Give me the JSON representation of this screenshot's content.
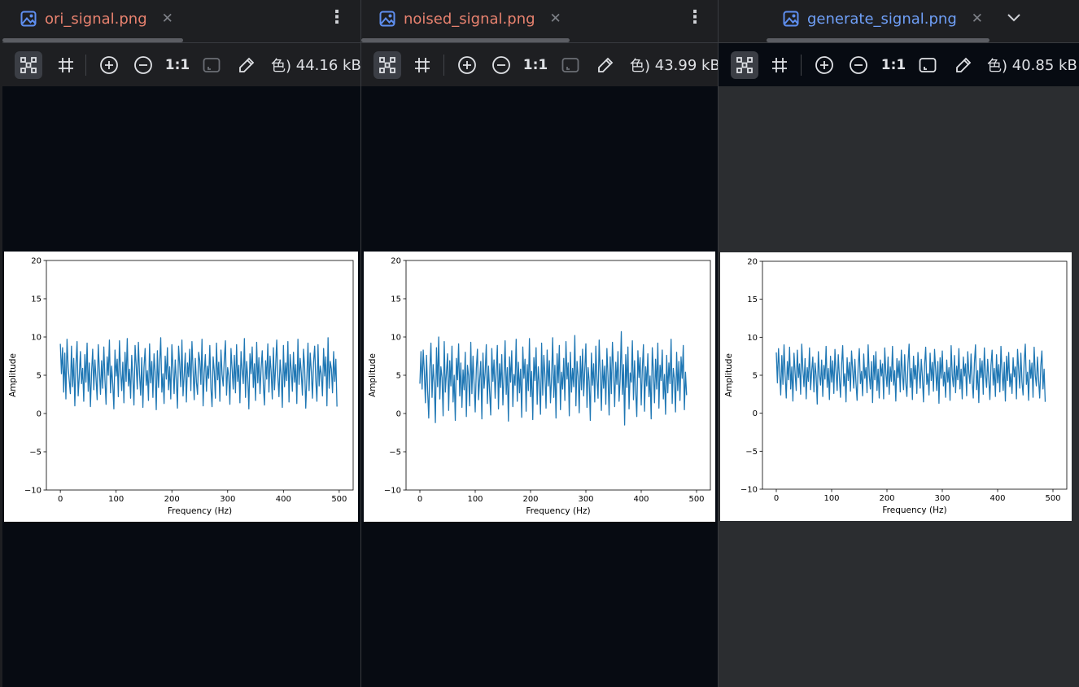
{
  "colors": {
    "tab_text_inactive": "#e8826f",
    "tab_text_active": "#6f9ff7",
    "icon_blue": "#5f8ff0",
    "viewport_dark": "#070b12",
    "viewport_gray": "#2b2d30",
    "series": "#1f77b4"
  },
  "panes": [
    {
      "tab": {
        "label": "ori_signal.png",
        "icon": "image-file-icon",
        "close_icon": "close-icon"
      },
      "menu_icon": "kebab-menu-icon",
      "toolbar": {
        "zoom_label": "1:1",
        "color_glyph": "色)",
        "file_size": "44.16 kB"
      },
      "chart_data": {
        "type": "line",
        "xlabel": "Frequency (Hz)",
        "ylabel": "Amplitude",
        "xlim": [
          -25,
          525
        ],
        "ylim": [
          -10,
          20
        ],
        "xticks": [
          0,
          100,
          200,
          300,
          400,
          500
        ],
        "yticks": [
          -10,
          -5,
          0,
          5,
          10,
          15,
          20
        ],
        "grid": false,
        "series": [
          {
            "x_start": 0,
            "x_step": 2,
            "y": [
              9.1,
              5.2,
              8.6,
              2.8,
              7.9,
              1.9,
              9.7,
              6.1,
              4.3,
              2.6,
              8.8,
              3.5,
              7.2,
              1.0,
              6.4,
              9.4,
              2.3,
              4.8,
              8.1,
              3.9,
              5.9,
              1.6,
              7.7,
              4.1,
              9.2,
              2.9,
              6.6,
              0.9,
              5.3,
              8.4,
              3.1,
              7.0,
              4.6,
              1.8,
              9.0,
              5.7,
              2.5,
              6.9,
              3.3,
              8.7,
              4.4,
              1.2,
              7.4,
              5.0,
              9.6,
              2.7,
              6.2,
              3.8,
              0.6,
              8.3,
              4.9,
              7.1,
              2.2,
              9.5,
              5.5,
              3.0,
              6.7,
              1.4,
              8.0,
              4.2,
              9.8,
              3.6,
              5.8,
              2.0,
              7.6,
              4.7,
              1.1,
              8.9,
              6.3,
              3.2,
              9.3,
              5.1,
              2.4,
              7.3,
              0.8,
              6.0,
              8.5,
              3.7,
              5.6,
              1.7,
              9.1,
              4.0,
              6.8,
              2.1,
              7.8,
              5.4,
              0.5,
              8.2,
              3.4,
              6.5,
              9.9,
              2.8,
              5.2,
              1.3,
              7.5,
              4.5,
              8.6,
              3.1,
              6.1,
              1.9,
              9.0,
              5.9,
              2.6,
              7.0,
              4.3,
              0.7,
              8.8,
              6.4,
              3.5,
              9.6,
              2.3,
              5.0,
              7.9,
              1.5,
              6.6,
              4.8,
              8.4,
              3.0,
              9.4,
              5.7,
              1.8,
              7.2,
              4.1,
              2.5,
              8.0,
              6.9,
              3.8,
              9.7,
              1.0,
              5.3,
              7.7,
              2.9,
              6.2,
              4.6,
              8.9,
              3.3,
              0.9,
              7.4,
              5.5,
              2.0,
              9.2,
              4.4,
              6.7,
              1.6,
              8.3,
              5.1,
              3.6,
              7.1,
              9.5,
              2.4,
              6.0,
              4.9,
              1.2,
              8.5,
              5.8,
              3.2,
              7.6,
              2.7,
              9.0,
              4.2,
              6.3,
              1.4,
              8.1,
              5.6,
              3.9,
              9.8,
              2.1,
              6.8,
              4.7,
              0.6,
              7.8,
              5.2,
              8.7,
              3.4,
              6.5,
              1.7,
              9.3,
              4.0,
              7.3,
              2.6,
              5.9,
              8.2,
              3.7,
              1.1,
              6.9,
              4.5,
              9.1,
              2.8,
              7.5,
              5.4,
              1.9,
              8.6,
              3.1,
              6.1,
              9.6,
              4.8,
              2.2,
              7.0,
              5.0,
              0.8,
              8.9,
              3.5,
              6.6,
              4.3,
              9.4,
              1.5,
              7.7,
              5.7,
              2.9,
              8.0,
              4.1,
              6.4,
              1.3,
              9.7,
              3.8,
              7.2,
              5.3,
              2.4,
              8.4,
              6.0,
              0.7,
              4.6,
              9.2,
              3.0,
              7.9,
              5.5,
              2.0,
              6.7,
              8.8,
              4.4,
              1.6,
              9.0,
              3.6,
              6.2,
              5.1,
              2.3,
              8.5,
              4.9,
              7.4,
              1.0,
              9.9,
              3.3,
              6.8,
              5.8,
              2.7,
              8.1,
              4.2,
              7.1,
              0.9
            ]
          }
        ]
      }
    },
    {
      "tab": {
        "label": "noised_signal.png",
        "icon": "image-file-icon",
        "close_icon": "close-icon"
      },
      "menu_icon": "kebab-menu-icon",
      "toolbar": {
        "zoom_label": "1:1",
        "color_glyph": "色)",
        "file_size": "43.99 kB"
      },
      "chart_data": {
        "type": "line",
        "xlabel": "Frequency (Hz)",
        "ylabel": "Amplitude",
        "xlim": [
          -25,
          525
        ],
        "ylim": [
          -10,
          20
        ],
        "xticks": [
          0,
          100,
          200,
          300,
          400,
          500
        ],
        "yticks": [
          -10,
          -5,
          0,
          5,
          10,
          15,
          20
        ],
        "grid": false,
        "series": [
          {
            "x_start": 0,
            "x_step": 2,
            "y": [
              3.9,
              8.1,
              3.2,
              8.3,
              5.5,
              1.4,
              7.6,
              3.0,
              -0.6,
              5.8,
              9.2,
              2.1,
              6.4,
              4.0,
              -1.2,
              8.6,
              3.5,
              10.0,
              1.9,
              6.1,
              4.7,
              -0.3,
              9.4,
              2.8,
              5.3,
              7.8,
              0.4,
              6.9,
              3.6,
              8.8,
              1.5,
              5.0,
              -0.9,
              7.2,
              4.4,
              9.1,
              2.3,
              6.6,
              0.8,
              5.7,
              3.1,
              8.0,
              -0.4,
              6.3,
              4.9,
              1.0,
              9.3,
              2.6,
              7.5,
              3.8,
              0.2,
              5.9,
              8.4,
              1.8,
              4.5,
              6.8,
              -0.7,
              7.9,
              3.3,
              5.4,
              9.0,
              1.3,
              6.2,
              2.9,
              -0.2,
              8.5,
              4.2,
              7.0,
              2.0,
              5.6,
              8.9,
              0.6,
              6.5,
              3.4,
              7.7,
              1.1,
              4.8,
              9.5,
              2.5,
              6.0,
              -1.0,
              7.4,
              4.1,
              8.2,
              0.9,
              5.1,
              3.7,
              9.7,
              1.6,
              6.7,
              2.7,
              5.8,
              -0.5,
              8.7,
              4.6,
              7.1,
              0.3,
              6.4,
              3.0,
              9.8,
              2.2,
              5.5,
              -0.8,
              7.3,
              4.3,
              8.6,
              1.2,
              6.1,
              3.9,
              -0.1,
              9.2,
              2.4,
              7.6,
              5.0,
              0.7,
              8.3,
              3.6,
              6.9,
              1.4,
              4.7,
              9.9,
              2.1,
              6.3,
              -0.6,
              7.8,
              4.0,
              8.9,
              0.5,
              5.4,
              3.2,
              7.2,
              1.7,
              9.4,
              4.5,
              6.6,
              -0.3,
              8.0,
              2.8,
              5.9,
              3.5,
              10.2,
              1.0,
              6.8,
              4.9,
              0.1,
              7.5,
              3.1,
              8.4,
              2.3,
              5.7,
              9.1,
              0.8,
              6.0,
              4.2,
              -0.9,
              7.9,
              3.7,
              6.5,
              1.5,
              8.8,
              4.4,
              2.0,
              9.6,
              5.2,
              0.4,
              7.0,
              3.3,
              6.2,
              1.2,
              8.5,
              4.8,
              -0.2,
              7.4,
              2.6,
              9.3,
              5.6,
              0.9,
              6.7,
              3.8,
              8.1,
              1.6,
              4.6,
              10.7,
              2.5,
              6.4,
              -1.5,
              7.7,
              3.4,
              8.7,
              0.6,
              5.3,
              4.1,
              9.5,
              1.8,
              6.9,
              2.9,
              -0.4,
              8.2,
              4.7,
              7.3,
              1.1,
              5.8,
              9.0,
              0.3,
              6.1,
              3.6,
              7.8,
              2.2,
              4.9,
              -0.7,
              8.6,
              5.5,
              1.4,
              7.1,
              3.2,
              9.2,
              0.7,
              6.3,
              4.3,
              8.3,
              1.9,
              5.1,
              -0.1,
              7.6,
              2.7,
              6.6,
              3.9,
              9.7,
              1.3,
              5.9,
              4.5,
              0.2,
              8.0,
              3.0,
              6.8,
              1.7,
              7.4,
              4.6,
              8.9,
              0.5,
              5.4,
              2.4
            ]
          }
        ]
      }
    },
    {
      "tab": {
        "label": "generate_signal.png",
        "icon": "image-file-icon",
        "close_icon": "close-icon"
      },
      "menu_icon": "chevron-down-icon",
      "toolbar": {
        "zoom_label": "1:1",
        "color_glyph": "色)",
        "file_size": "40.85 kB"
      },
      "chart_data": {
        "type": "line",
        "xlabel": "Frequency (Hz)",
        "ylabel": "Amplitude",
        "xlim": [
          -25,
          525
        ],
        "ylim": [
          -10,
          20
        ],
        "xticks": [
          0,
          100,
          200,
          300,
          400,
          500
        ],
        "yticks": [
          -10,
          -5,
          0,
          5,
          10,
          15,
          20
        ],
        "grid": false,
        "series": [
          {
            "x_start": 0,
            "x_step": 2,
            "y": [
              8.0,
              4.0,
              8.5,
              5.5,
              2.4,
              7.6,
              3.8,
              9.0,
              5.0,
              2.0,
              6.8,
              4.4,
              8.7,
              3.2,
              6.1,
              1.6,
              7.9,
              5.3,
              3.0,
              8.3,
              4.7,
              6.5,
              2.5,
              9.1,
              5.8,
              3.5,
              7.2,
              1.9,
              6.0,
              4.2,
              8.6,
              3.1,
              5.6,
              7.4,
              2.8,
              6.6,
              4.9,
              1.2,
              8.1,
              5.1,
              3.7,
              7.0,
              2.2,
              6.3,
              4.5,
              8.8,
              3.4,
              5.9,
              1.8,
              7.5,
              4.1,
              6.9,
              2.6,
              8.4,
              5.4,
              3.0,
              7.7,
              4.8,
              2.1,
              6.4,
              8.9,
              3.6,
              5.2,
              1.5,
              7.3,
              4.3,
              6.7,
              2.9,
              8.2,
              5.7,
              3.3,
              7.1,
              4.0,
              1.7,
              6.2,
              8.5,
              3.9,
              5.5,
              2.3,
              7.8,
              4.6,
              6.0,
              2.7,
              9.0,
              5.0,
              3.2,
              6.8,
              1.4,
              7.6,
              4.4,
              8.1,
              3.0,
              5.8,
              2.0,
              7.0,
              4.9,
              6.5,
              1.9,
              8.6,
              5.3,
              3.5,
              7.4,
              2.5,
              6.1,
              4.2,
              8.8,
              3.7,
              5.6,
              1.6,
              7.2,
              4.7,
              6.9,
              2.8,
              8.3,
              5.1,
              3.1,
              7.7,
              4.0,
              2.2,
              6.6,
              9.1,
              3.4,
              5.9,
              1.8,
              7.5,
              4.5,
              6.3,
              2.6,
              8.0,
              5.5,
              3.3,
              7.1,
              4.8,
              1.5,
              6.4,
              8.7,
              3.8,
              5.2,
              2.4,
              7.9,
              4.3,
              6.7,
              2.9,
              8.4,
              5.7,
              3.0,
              6.8,
              1.3,
              7.3,
              4.6,
              8.2,
              3.6,
              5.4,
              2.1,
              7.0,
              4.1,
              6.0,
              1.7,
              8.9,
              5.0,
              3.5,
              7.6,
              2.7,
              6.2,
              4.4,
              8.5,
              3.2,
              5.8,
              1.9,
              7.4,
              4.9,
              6.5,
              2.3,
              8.1,
              5.3,
              3.9,
              7.8,
              4.2,
              2.0,
              6.6,
              9.0,
              3.1,
              5.6,
              1.4,
              7.2,
              4.7,
              6.9,
              2.5,
              8.6,
              5.1,
              3.4,
              7.1,
              4.5,
              1.8,
              6.3,
              8.3,
              3.7,
              5.9,
              2.2,
              7.7,
              4.0,
              6.4,
              2.8,
              8.8,
              5.5,
              3.0,
              6.7,
              1.6,
              7.5,
              4.3,
              8.0,
              3.5,
              5.2,
              2.6,
              7.3,
              4.8,
              6.1,
              1.9,
              8.4,
              5.7,
              3.3,
              7.9,
              4.1,
              2.4,
              6.8,
              9.1,
              3.8,
              5.4,
              1.7,
              7.0,
              4.6,
              6.6,
              2.1,
              8.7,
              5.0,
              3.6,
              7.4,
              4.4,
              2.0,
              6.2,
              8.2,
              3.2,
              5.8,
              1.5
            ]
          }
        ]
      }
    }
  ]
}
